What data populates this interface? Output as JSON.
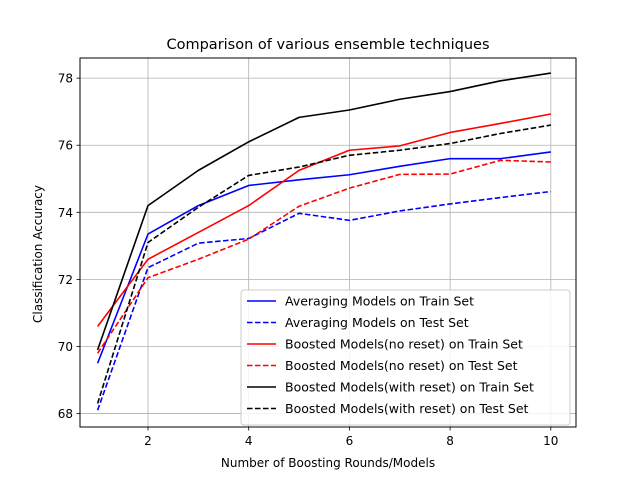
{
  "chart_data": {
    "type": "line",
    "title": "Comparison of various ensemble techniques",
    "xlabel": "Number of Boosting Rounds/Models",
    "ylabel": "Classification Accuracy",
    "xlim": [
      0.65,
      10.5
    ],
    "ylim": [
      67.6,
      78.6
    ],
    "xticks": [
      2,
      4,
      6,
      8,
      10
    ],
    "yticks": [
      68,
      70,
      72,
      74,
      76,
      78
    ],
    "grid": true,
    "legend_position": "lower-right",
    "x": [
      1,
      2,
      3,
      4,
      5,
      6,
      7,
      8,
      9,
      10
    ],
    "series": [
      {
        "name": "Averaging Models on Train Set",
        "color": "#0000ff",
        "style": "solid",
        "values": [
          69.5,
          73.35,
          74.2,
          74.8,
          74.97,
          75.12,
          75.37,
          75.6,
          75.6,
          75.8
        ]
      },
      {
        "name": "Averaging Models on Test Set",
        "color": "#0000ff",
        "style": "dashed",
        "values": [
          68.1,
          72.35,
          73.08,
          73.22,
          73.97,
          73.76,
          74.04,
          74.25,
          74.44,
          74.62
        ]
      },
      {
        "name": "Boosted Models(no reset) on Train Set",
        "color": "#ff0000",
        "style": "solid",
        "values": [
          70.6,
          72.6,
          73.4,
          74.2,
          75.25,
          75.85,
          75.98,
          76.38,
          76.65,
          76.93
        ]
      },
      {
        "name": "Boosted Models(no reset) on Test Set",
        "color": "#ff0000",
        "style": "dashed",
        "values": [
          69.8,
          72.05,
          72.6,
          73.2,
          74.18,
          74.72,
          75.13,
          75.14,
          75.55,
          75.5
        ]
      },
      {
        "name": "Boosted Models(with reset) on Train Set",
        "color": "#000000",
        "style": "solid",
        "values": [
          69.9,
          74.2,
          75.25,
          76.1,
          76.83,
          77.05,
          77.37,
          77.6,
          77.92,
          78.15
        ]
      },
      {
        "name": "Boosted Models(with reset) on Test Set",
        "color": "#000000",
        "style": "dashed",
        "values": [
          68.3,
          73.1,
          74.15,
          75.1,
          75.35,
          75.7,
          75.85,
          76.05,
          76.35,
          76.6
        ]
      }
    ]
  }
}
